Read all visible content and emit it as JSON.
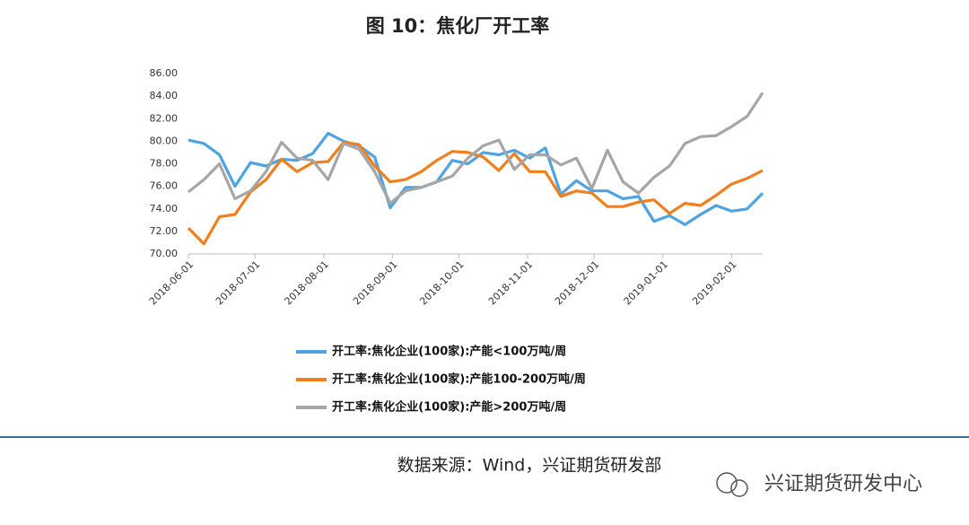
{
  "chart_data": {
    "type": "line",
    "title": "图 10：焦化厂开工率",
    "x": [
      "2018-06-01",
      "2018-06-08",
      "2018-06-15",
      "2018-06-22",
      "2018-06-29",
      "2018-07-06",
      "2018-07-13",
      "2018-07-20",
      "2018-07-27",
      "2018-08-03",
      "2018-08-10",
      "2018-08-17",
      "2018-08-24",
      "2018-08-31",
      "2018-09-07",
      "2018-09-14",
      "2018-09-21",
      "2018-09-28",
      "2018-10-05",
      "2018-10-12",
      "2018-10-19",
      "2018-10-26",
      "2018-11-02",
      "2018-11-09",
      "2018-11-16",
      "2018-11-23",
      "2018-11-30",
      "2018-12-07",
      "2018-12-14",
      "2018-12-21",
      "2018-12-28",
      "2019-01-04",
      "2019-01-11",
      "2019-01-18",
      "2019-01-25",
      "2019-02-01",
      "2019-02-08",
      "2019-02-15"
    ],
    "series": [
      {
        "name": "开工率:焦化企业(100家):产能<100万吨/周",
        "color": "#4ea3e4",
        "values": [
          80.1,
          79.8,
          78.8,
          76.0,
          78.1,
          77.8,
          78.4,
          78.3,
          78.9,
          80.7,
          80.0,
          79.6,
          78.6,
          74.1,
          75.9,
          75.9,
          76.4,
          78.3,
          78.0,
          79.0,
          78.8,
          79.2,
          78.5,
          79.4,
          75.3,
          76.5,
          75.6,
          75.6,
          74.9,
          75.1,
          72.9,
          73.4,
          72.6,
          73.5,
          74.3,
          73.8,
          74.0,
          75.4
        ]
      },
      {
        "name": "开工率:焦化企业(100家):产能100-200万吨/周",
        "color": "#f07f1d",
        "values": [
          72.3,
          70.9,
          73.3,
          73.5,
          75.5,
          76.6,
          78.4,
          77.3,
          78.1,
          78.2,
          79.9,
          79.7,
          77.8,
          76.4,
          76.6,
          77.3,
          78.3,
          79.1,
          79.0,
          78.6,
          77.4,
          78.9,
          77.3,
          77.3,
          75.1,
          75.6,
          75.4,
          74.2,
          74.2,
          74.6,
          74.8,
          73.6,
          74.5,
          74.3,
          75.2,
          76.2,
          76.7,
          77.4
        ]
      },
      {
        "name": "开工率:焦化企业(100家):产能>200万吨/周",
        "color": "#a6a6a6",
        "values": [
          75.5,
          76.6,
          78.0,
          74.9,
          75.6,
          77.3,
          79.9,
          78.5,
          78.3,
          76.6,
          79.8,
          79.3,
          77.3,
          74.5,
          75.6,
          75.9,
          76.4,
          76.9,
          78.5,
          79.6,
          80.1,
          77.5,
          78.8,
          78.8,
          77.9,
          78.5,
          75.8,
          79.2,
          76.4,
          75.4,
          76.8,
          77.8,
          79.8,
          80.4,
          80.5,
          81.3,
          82.2,
          84.3
        ]
      }
    ],
    "xlim": [
      "2018-06-01",
      "2019-02-15"
    ],
    "xticks": [
      "2018-06-01",
      "2018-07-01",
      "2018-08-01",
      "2018-09-01",
      "2018-10-01",
      "2018-11-01",
      "2018-12-01",
      "2019-01-01",
      "2019-02-01"
    ],
    "ylim": [
      70,
      86
    ],
    "yticks": [
      {
        "value": 70,
        "label": "70.00"
      },
      {
        "value": 72,
        "label": "72.00"
      },
      {
        "value": 74,
        "label": "74.00"
      },
      {
        "value": 76,
        "label": "76.00"
      },
      {
        "value": 78,
        "label": "78.00"
      },
      {
        "value": 80,
        "label": "80.00"
      },
      {
        "value": 82,
        "label": "82.00"
      },
      {
        "value": 84,
        "label": "84.00"
      },
      {
        "value": 86,
        "label": "86.00"
      }
    ],
    "grid": false
  },
  "footer": {
    "source": "数据来源：Wind，兴证期货研发部",
    "watermark": "兴证期货研发中心"
  }
}
